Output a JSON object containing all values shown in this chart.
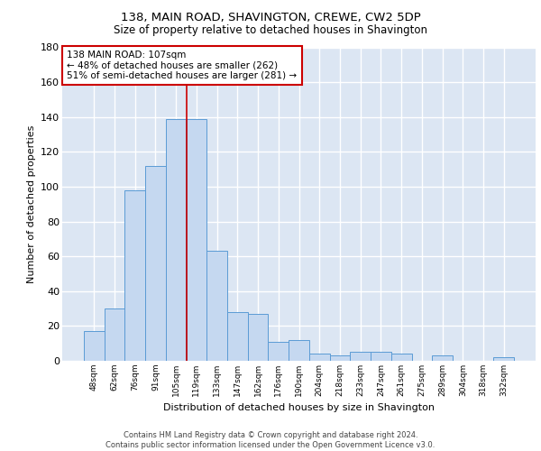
{
  "title": "138, MAIN ROAD, SHAVINGTON, CREWE, CW2 5DP",
  "subtitle": "Size of property relative to detached houses in Shavington",
  "xlabel": "Distribution of detached houses by size in Shavington",
  "ylabel": "Number of detached properties",
  "bar_color": "#c5d8f0",
  "bar_edge_color": "#5b9bd5",
  "background_color": "#dce6f3",
  "grid_color": "#ffffff",
  "vline_color": "#cc0000",
  "annotation_text": "138 MAIN ROAD: 107sqm\n← 48% of detached houses are smaller (262)\n51% of semi-detached houses are larger (281) →",
  "footer_text": "Contains HM Land Registry data © Crown copyright and database right 2024.\nContains public sector information licensed under the Open Government Licence v3.0.",
  "categories": [
    "48sqm",
    "62sqm",
    "76sqm",
    "91sqm",
    "105sqm",
    "119sqm",
    "133sqm",
    "147sqm",
    "162sqm",
    "176sqm",
    "190sqm",
    "204sqm",
    "218sqm",
    "233sqm",
    "247sqm",
    "261sqm",
    "275sqm",
    "289sqm",
    "304sqm",
    "318sqm",
    "332sqm"
  ],
  "values": [
    17,
    30,
    98,
    112,
    139,
    139,
    63,
    28,
    27,
    11,
    12,
    4,
    3,
    5,
    5,
    4,
    0,
    3,
    0,
    0,
    2
  ],
  "ylim": [
    0,
    180
  ],
  "yticks": [
    0,
    20,
    40,
    60,
    80,
    100,
    120,
    140,
    160,
    180
  ],
  "vline_x": 4.5
}
